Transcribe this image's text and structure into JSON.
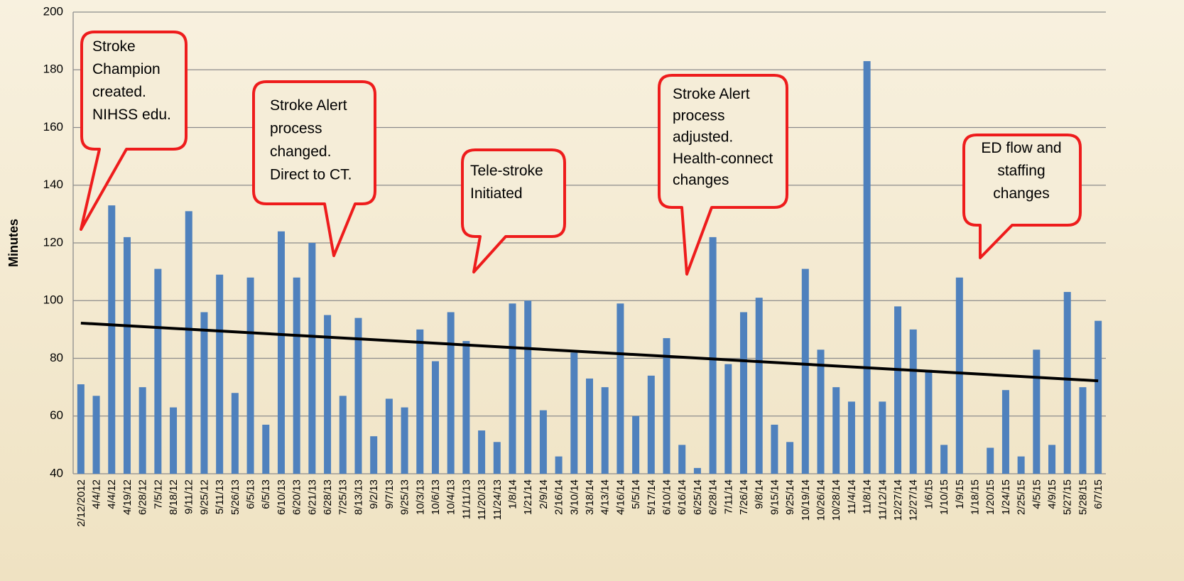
{
  "chart_data": {
    "type": "bar",
    "y_label": "Minutes",
    "categories": [
      "2/12/2012",
      "4/4/12",
      "4/4/12",
      "4/19/12",
      "6/28/12",
      "7/5/12",
      "8/18/12",
      "9/11/12",
      "9/25/12",
      "5/11/13",
      "5/26/13",
      "6/5/13",
      "6/5/13",
      "6/10/13",
      "6/20/13",
      "6/21/13",
      "6/28/13",
      "7/25/13",
      "8/13/13",
      "9/2/13",
      "9/7/13",
      "9/25/13",
      "10/3/13",
      "10/6/13",
      "10/4/13",
      "11/11/13",
      "11/20/13",
      "11/24/13",
      "1/8/14",
      "1/21/14",
      "2/9/14",
      "2/16/14",
      "3/10/14",
      "3/18/14",
      "4/13/14",
      "4/16/14",
      "5/5/14",
      "5/17/14",
      "6/10/14",
      "6/16/14",
      "6/25/14",
      "6/28/14",
      "7/11/14",
      "7/26/14",
      "9/8/14",
      "9/15/14",
      "9/25/14",
      "10/19/14",
      "10/26/14",
      "10/28/14",
      "11/4/14",
      "11/8/14",
      "11/12/14",
      "12/27/14",
      "12/27/14",
      "1/6/15",
      "1/10/15",
      "1/9/15",
      "1/18/15",
      "1/20/15",
      "1/24/15",
      "2/25/15",
      "4/5/15",
      "4/9/15",
      "5/27/15",
      "5/28/15",
      "6/7/15"
    ],
    "values": [
      71,
      67,
      133,
      122,
      70,
      111,
      63,
      131,
      96,
      109,
      68,
      108,
      57,
      124,
      108,
      120,
      95,
      67,
      94,
      53,
      66,
      63,
      90,
      79,
      96,
      86,
      55,
      51,
      99,
      100,
      62,
      46,
      82,
      73,
      70,
      99,
      60,
      74,
      87,
      50,
      42,
      122,
      78,
      96,
      101,
      57,
      51,
      111,
      83,
      70,
      65,
      183,
      65,
      98,
      90,
      76,
      50,
      108,
      null,
      49,
      69,
      46,
      83,
      50,
      103,
      70,
      93
    ],
    "color": "#4f81bd",
    "trendline": {
      "values": [
        92.2,
        72.2
      ],
      "color": "#000000"
    },
    "ylim": [
      40,
      200
    ],
    "yticks": [
      40,
      60,
      80,
      100,
      120,
      140,
      160,
      180,
      200
    ],
    "grid": true,
    "annotations": [
      {
        "lines": [
          "Stroke",
          "Champion",
          "created.",
          "NIHSS edu."
        ]
      },
      {
        "lines": [
          "Stroke Alert",
          "process",
          "changed.",
          "Direct to CT."
        ]
      },
      {
        "lines": [
          "Tele-stroke",
          " Initiated"
        ]
      },
      {
        "lines": [
          "Stroke Alert",
          "process",
          "adjusted.",
          "Health-connect",
          "changes"
        ]
      },
      {
        "lines": [
          "ED flow and",
          "staffing",
          "changes"
        ]
      }
    ]
  }
}
